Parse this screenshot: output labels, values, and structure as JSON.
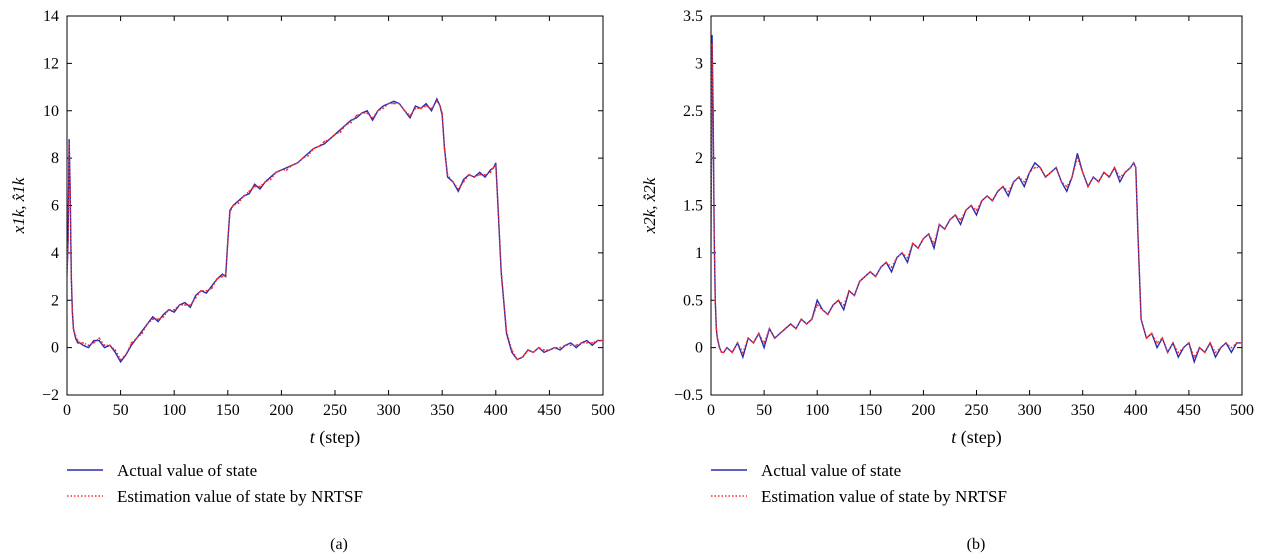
{
  "chart_data": [
    {
      "panel_label": "(a)",
      "type": "line",
      "xlabel_italic": "t",
      "xlabel_rest": " (step)",
      "ylabel": "x1k, x̂1k",
      "xlim": [
        0,
        500
      ],
      "ylim": [
        -2,
        14
      ],
      "xticks": [
        "0",
        "50",
        "100",
        "150",
        "200",
        "250",
        "300",
        "350",
        "400",
        "450",
        "500"
      ],
      "yticks": [
        "−2",
        "0",
        "2",
        "4",
        "6",
        "8",
        "10",
        "12",
        "14"
      ],
      "grid": false,
      "legend_placement": "below",
      "series": [
        {
          "name": "Actual value of state",
          "color": "#2b2bb0",
          "style": "solid",
          "x": [
            0,
            1,
            2,
            3,
            4,
            5,
            6,
            8,
            10,
            12,
            15,
            20,
            25,
            30,
            35,
            40,
            45,
            50,
            55,
            60,
            65,
            70,
            75,
            80,
            85,
            90,
            95,
            100,
            105,
            110,
            115,
            120,
            125,
            130,
            135,
            140,
            145,
            148,
            150,
            152,
            155,
            160,
            165,
            170,
            175,
            180,
            185,
            190,
            195,
            200,
            205,
            210,
            215,
            220,
            225,
            230,
            235,
            240,
            245,
            250,
            255,
            260,
            265,
            270,
            275,
            280,
            285,
            290,
            295,
            300,
            305,
            310,
            315,
            320,
            325,
            330,
            335,
            340,
            345,
            348,
            350,
            352,
            355,
            360,
            365,
            370,
            375,
            380,
            385,
            390,
            395,
            398,
            400,
            402,
            405,
            410,
            415,
            420,
            425,
            430,
            435,
            440,
            445,
            450,
            455,
            460,
            465,
            470,
            475,
            480,
            485,
            490,
            495,
            500
          ],
          "values": [
            3.0,
            4.5,
            8.8,
            6.5,
            3.0,
            1.5,
            0.8,
            0.4,
            0.2,
            0.2,
            0.1,
            0.0,
            0.3,
            0.3,
            0.0,
            0.1,
            -0.2,
            -0.6,
            -0.3,
            0.1,
            0.4,
            0.7,
            1.0,
            1.3,
            1.1,
            1.4,
            1.6,
            1.5,
            1.8,
            1.9,
            1.7,
            2.2,
            2.4,
            2.3,
            2.6,
            2.9,
            3.1,
            3.0,
            4.5,
            5.8,
            6.0,
            6.2,
            6.4,
            6.5,
            6.9,
            6.7,
            7.0,
            7.2,
            7.4,
            7.5,
            7.6,
            7.7,
            7.8,
            8.0,
            8.2,
            8.4,
            8.5,
            8.6,
            8.8,
            9.0,
            9.2,
            9.4,
            9.6,
            9.7,
            9.9,
            10.0,
            9.6,
            10.0,
            10.2,
            10.3,
            10.4,
            10.3,
            10.0,
            9.7,
            10.2,
            10.1,
            10.3,
            10.0,
            10.5,
            10.2,
            9.8,
            8.5,
            7.2,
            7.0,
            6.6,
            7.1,
            7.3,
            7.2,
            7.4,
            7.2,
            7.5,
            7.6,
            7.8,
            6.0,
            3.2,
            0.6,
            -0.2,
            -0.5,
            -0.4,
            -0.1,
            -0.2,
            0.0,
            -0.2,
            -0.1,
            0.0,
            -0.1,
            0.1,
            0.2,
            0.0,
            0.2,
            0.3,
            0.1,
            0.3,
            0.3
          ]
        },
        {
          "name": "Estimation value of state by NRTSF",
          "color": "#ff2a2a",
          "style": "dotted",
          "x": [
            0,
            1,
            2,
            3,
            4,
            5,
            6,
            8,
            10,
            12,
            15,
            20,
            25,
            30,
            35,
            40,
            45,
            50,
            55,
            60,
            65,
            70,
            75,
            80,
            85,
            90,
            95,
            100,
            105,
            110,
            115,
            120,
            125,
            130,
            135,
            140,
            145,
            148,
            150,
            152,
            155,
            160,
            165,
            170,
            175,
            180,
            185,
            190,
            195,
            200,
            205,
            210,
            215,
            220,
            225,
            230,
            235,
            240,
            245,
            250,
            255,
            260,
            265,
            270,
            275,
            280,
            285,
            290,
            295,
            300,
            305,
            310,
            315,
            320,
            325,
            330,
            335,
            340,
            345,
            348,
            350,
            352,
            355,
            360,
            365,
            370,
            375,
            380,
            385,
            390,
            395,
            398,
            400,
            402,
            405,
            410,
            415,
            420,
            425,
            430,
            435,
            440,
            445,
            450,
            455,
            460,
            465,
            470,
            475,
            480,
            485,
            490,
            495,
            500
          ],
          "values": [
            3.1,
            4.4,
            8.6,
            6.6,
            3.1,
            1.6,
            0.8,
            0.5,
            0.3,
            0.2,
            0.2,
            0.1,
            0.2,
            0.4,
            0.1,
            0.1,
            -0.1,
            -0.5,
            -0.3,
            0.2,
            0.4,
            0.6,
            1.0,
            1.2,
            1.2,
            1.3,
            1.6,
            1.6,
            1.8,
            1.8,
            1.8,
            2.1,
            2.4,
            2.4,
            2.5,
            2.9,
            3.0,
            3.1,
            4.4,
            5.7,
            6.0,
            6.1,
            6.4,
            6.6,
            6.8,
            6.8,
            7.0,
            7.1,
            7.4,
            7.5,
            7.5,
            7.7,
            7.8,
            8.0,
            8.1,
            8.4,
            8.5,
            8.7,
            8.8,
            9.0,
            9.1,
            9.4,
            9.5,
            9.8,
            9.9,
            9.9,
            9.7,
            10.0,
            10.1,
            10.3,
            10.3,
            10.3,
            10.0,
            9.8,
            10.1,
            10.1,
            10.2,
            10.1,
            10.4,
            10.2,
            9.9,
            8.4,
            7.3,
            7.0,
            6.7,
            7.0,
            7.3,
            7.2,
            7.3,
            7.3,
            7.4,
            7.6,
            7.7,
            6.1,
            3.3,
            0.7,
            -0.1,
            -0.5,
            -0.4,
            -0.1,
            -0.2,
            0.0,
            -0.1,
            -0.1,
            0.0,
            0.0,
            0.1,
            0.1,
            0.1,
            0.2,
            0.2,
            0.2,
            0.3,
            0.3
          ]
        }
      ]
    },
    {
      "panel_label": "(b)",
      "type": "line",
      "xlabel_italic": "t",
      "xlabel_rest": " (step)",
      "ylabel": "x2k, x̂2k",
      "xlim": [
        0,
        500
      ],
      "ylim": [
        -0.5,
        3.5
      ],
      "xticks": [
        "0",
        "50",
        "100",
        "150",
        "200",
        "250",
        "300",
        "350",
        "400",
        "450",
        "500"
      ],
      "yticks": [
        "−0.5",
        "0",
        "0.5",
        "1",
        "1.5",
        "2",
        "2.5",
        "3",
        "3.5"
      ],
      "grid": false,
      "legend_placement": "below",
      "series": [
        {
          "name": "Actual value of state",
          "color": "#2b2bb0",
          "style": "solid",
          "x": [
            0,
            1,
            2,
            3,
            4,
            5,
            6,
            8,
            10,
            12,
            15,
            20,
            25,
            30,
            35,
            40,
            45,
            50,
            55,
            60,
            65,
            70,
            75,
            80,
            85,
            90,
            95,
            100,
            105,
            110,
            115,
            120,
            125,
            130,
            135,
            140,
            145,
            150,
            155,
            160,
            165,
            170,
            175,
            180,
            185,
            190,
            195,
            200,
            205,
            210,
            215,
            220,
            225,
            230,
            235,
            240,
            245,
            250,
            255,
            260,
            265,
            270,
            275,
            280,
            285,
            290,
            295,
            300,
            305,
            310,
            315,
            320,
            325,
            330,
            335,
            340,
            345,
            350,
            355,
            360,
            365,
            370,
            375,
            380,
            385,
            390,
            395,
            398,
            400,
            402,
            405,
            410,
            415,
            420,
            425,
            430,
            435,
            440,
            445,
            450,
            455,
            460,
            465,
            470,
            475,
            480,
            485,
            490,
            495,
            500
          ],
          "values": [
            1.0,
            3.3,
            2.5,
            1.2,
            0.5,
            0.2,
            0.1,
            0.0,
            -0.05,
            -0.05,
            0.0,
            -0.05,
            0.05,
            -0.1,
            0.1,
            0.05,
            0.15,
            0.0,
            0.2,
            0.1,
            0.15,
            0.2,
            0.25,
            0.2,
            0.3,
            0.25,
            0.3,
            0.5,
            0.4,
            0.35,
            0.45,
            0.5,
            0.4,
            0.6,
            0.55,
            0.7,
            0.75,
            0.8,
            0.75,
            0.85,
            0.9,
            0.8,
            0.95,
            1.0,
            0.9,
            1.1,
            1.05,
            1.15,
            1.2,
            1.05,
            1.3,
            1.25,
            1.35,
            1.4,
            1.3,
            1.45,
            1.5,
            1.4,
            1.55,
            1.6,
            1.55,
            1.65,
            1.7,
            1.6,
            1.75,
            1.8,
            1.7,
            1.85,
            1.95,
            1.9,
            1.8,
            1.85,
            1.9,
            1.75,
            1.65,
            1.8,
            2.05,
            1.85,
            1.7,
            1.8,
            1.75,
            1.85,
            1.8,
            1.9,
            1.75,
            1.85,
            1.9,
            1.95,
            1.9,
            1.2,
            0.3,
            0.1,
            0.15,
            0.0,
            0.1,
            -0.05,
            0.05,
            -0.1,
            0.0,
            0.05,
            -0.15,
            0.0,
            -0.05,
            0.05,
            -0.1,
            0.0,
            0.05,
            -0.05,
            0.05,
            0.05
          ]
        },
        {
          "name": "Estimation value of state by NRTSF",
          "color": "#ff2a2a",
          "style": "dotted",
          "x": [
            0,
            1,
            2,
            3,
            4,
            5,
            6,
            8,
            10,
            12,
            15,
            20,
            25,
            30,
            35,
            40,
            45,
            50,
            55,
            60,
            65,
            70,
            75,
            80,
            85,
            90,
            95,
            100,
            105,
            110,
            115,
            120,
            125,
            130,
            135,
            140,
            145,
            150,
            155,
            160,
            165,
            170,
            175,
            180,
            185,
            190,
            195,
            200,
            205,
            210,
            215,
            220,
            225,
            230,
            235,
            240,
            245,
            250,
            255,
            260,
            265,
            270,
            275,
            280,
            285,
            290,
            295,
            300,
            305,
            310,
            315,
            320,
            325,
            330,
            335,
            340,
            345,
            350,
            355,
            360,
            365,
            370,
            375,
            380,
            385,
            390,
            395,
            398,
            400,
            402,
            405,
            410,
            415,
            420,
            425,
            430,
            435,
            440,
            445,
            450,
            455,
            460,
            465,
            470,
            475,
            480,
            485,
            490,
            495,
            500
          ],
          "values": [
            1.0,
            3.2,
            2.5,
            1.2,
            0.5,
            0.2,
            0.1,
            0.0,
            -0.05,
            -0.05,
            0.0,
            -0.05,
            0.05,
            -0.05,
            0.1,
            0.05,
            0.15,
            0.05,
            0.2,
            0.1,
            0.15,
            0.2,
            0.25,
            0.2,
            0.3,
            0.25,
            0.3,
            0.45,
            0.4,
            0.35,
            0.45,
            0.5,
            0.45,
            0.6,
            0.55,
            0.7,
            0.75,
            0.8,
            0.75,
            0.85,
            0.9,
            0.85,
            0.95,
            1.0,
            0.95,
            1.1,
            1.05,
            1.15,
            1.2,
            1.1,
            1.3,
            1.25,
            1.35,
            1.4,
            1.35,
            1.45,
            1.5,
            1.45,
            1.55,
            1.6,
            1.55,
            1.65,
            1.7,
            1.65,
            1.75,
            1.8,
            1.75,
            1.85,
            1.9,
            1.9,
            1.8,
            1.85,
            1.9,
            1.75,
            1.7,
            1.8,
            2.0,
            1.85,
            1.7,
            1.8,
            1.75,
            1.85,
            1.8,
            1.9,
            1.8,
            1.85,
            1.9,
            1.95,
            1.9,
            1.2,
            0.3,
            0.1,
            0.15,
            0.05,
            0.1,
            -0.05,
            0.05,
            -0.05,
            0.0,
            0.05,
            -0.1,
            0.0,
            -0.05,
            0.05,
            -0.05,
            0.0,
            0.05,
            0.0,
            0.05,
            0.05
          ]
        }
      ]
    }
  ]
}
